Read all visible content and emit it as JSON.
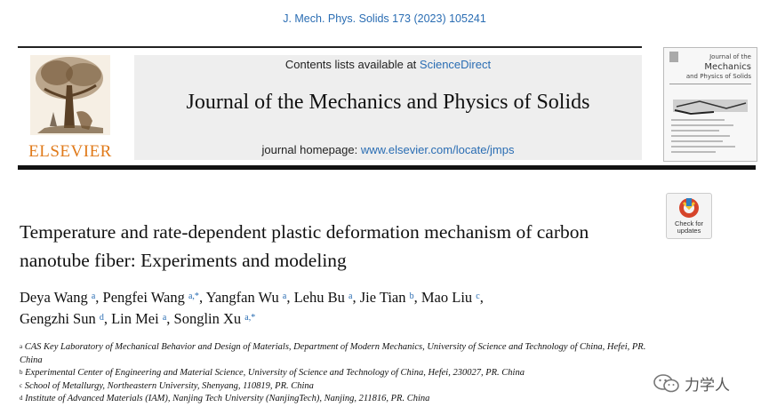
{
  "citation": "J. Mech. Phys. Solids 173 (2023) 105241",
  "publisher": {
    "wordmark": "ELSEVIER",
    "logo_icon": "elsevier-tree-logo"
  },
  "header": {
    "contents_prefix": "Contents lists available at ",
    "contents_link": "ScienceDirect",
    "journal_title": "Journal of the Mechanics and Physics of Solids",
    "homepage_prefix": "journal homepage: ",
    "homepage_link": "www.elsevier.com/locate/jmps"
  },
  "cover": {
    "title_lines": [
      "Journal of the",
      "Mechanics",
      "and Physics of Solids"
    ]
  },
  "check_updates": {
    "line1": "Check for",
    "line2": "updates"
  },
  "article": {
    "title": "Temperature and rate-dependent plastic deformation mechanism of carbon nanotube fiber: Experiments and modeling",
    "authors": [
      {
        "name": "Deya Wang",
        "sup": "a",
        "sep": ", "
      },
      {
        "name": "Pengfei Wang",
        "sup": "a,*",
        "sep": ", "
      },
      {
        "name": "Yangfan Wu",
        "sup": "a",
        "sep": ", "
      },
      {
        "name": "Lehu Bu",
        "sup": "a",
        "sep": ", "
      },
      {
        "name": "Jie Tian",
        "sup": "b",
        "sep": ", "
      },
      {
        "name": "Mao Liu",
        "sup": "c",
        "sep": ","
      },
      {
        "name": "Gengzhi Sun",
        "sup": "d",
        "sep": ", "
      },
      {
        "name": "Lin Mei",
        "sup": "a",
        "sep": ", "
      },
      {
        "name": "Songlin Xu",
        "sup": "a,*",
        "sep": ""
      }
    ],
    "affiliations": [
      {
        "sup": "a",
        "text": "CAS Key Laboratory of Mechanical Behavior and Design of Materials, Department of Modern Mechanics, University of Science and Technology of China, Hefei, PR. China"
      },
      {
        "sup": "b",
        "text": "Experimental Center of Engineering and Material Science, University of Science and Technology of China, Hefei, 230027, PR. China"
      },
      {
        "sup": "c",
        "text": "School of Metallurgy, Northeastern University, Shenyang, 110819, PR. China"
      },
      {
        "sup": "d",
        "text": "Institute of Advanced Materials (IAM), Nanjing Tech University (NanjingTech), Nanjing, 211816, PR. China"
      }
    ]
  },
  "watermark": {
    "text": "力学人",
    "icon": "wechat-icon"
  },
  "colors": {
    "link": "#2a6db3",
    "elsevier_orange": "#e07a1a",
    "header_bg": "#eeeeee"
  }
}
